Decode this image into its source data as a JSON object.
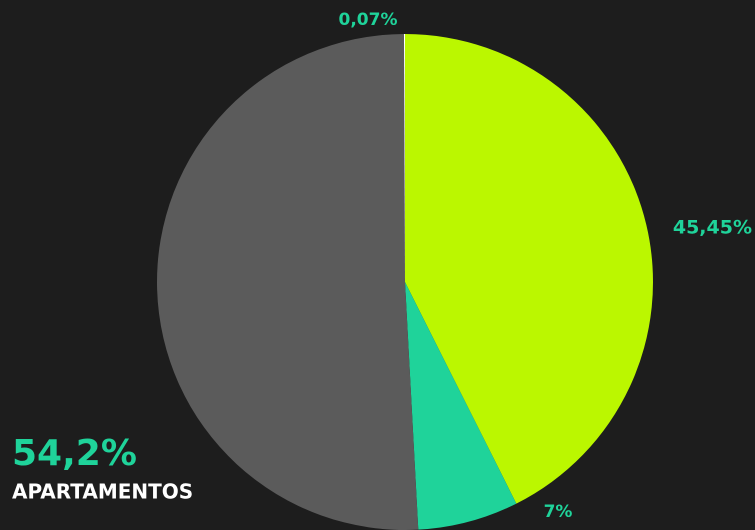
{
  "chart_data": {
    "type": "pie",
    "categories": [
      null,
      null,
      "APARTAMENTOS",
      null
    ],
    "values": [
      45.45,
      7,
      54.2,
      0.07
    ],
    "value_labels": [
      "45,45%",
      "7%",
      "54,2%",
      "0,07%"
    ],
    "colors": [
      "#bbf700",
      "#1fd39a",
      "#5b5b5b",
      "#ffffff"
    ]
  }
}
